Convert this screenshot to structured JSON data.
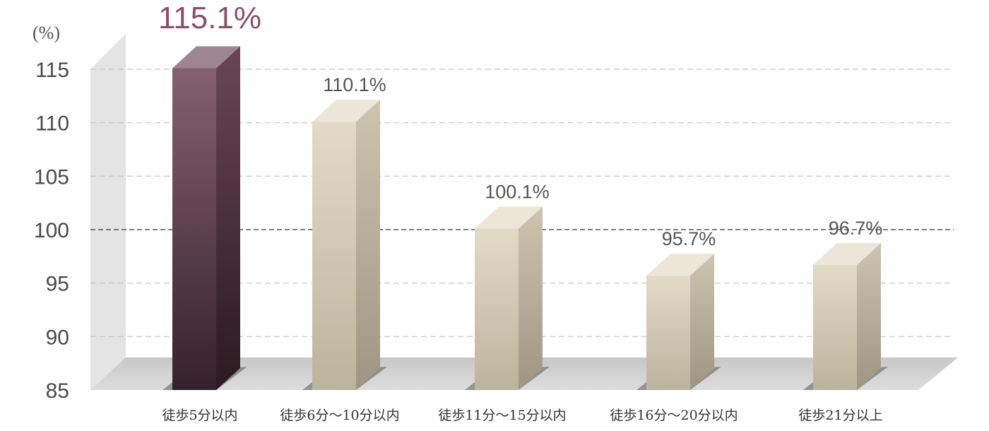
{
  "chart_data": {
    "type": "bar",
    "ylabel": "(%)",
    "ylim": [
      85,
      115
    ],
    "yticks": [
      85,
      90,
      95,
      100,
      105,
      110,
      115
    ],
    "reference_line": 100,
    "grid": true,
    "categories": [
      "徒歩5分以内",
      "徒歩6分〜10分以内",
      "徒歩11分〜15分以内",
      "徒歩16分〜20分以内",
      "徒歩21分以上"
    ],
    "values": [
      115.1,
      110.1,
      100.1,
      95.7,
      96.7
    ],
    "value_labels": [
      "115.1%",
      "110.1%",
      "100.1%",
      "95.7%",
      "96.7%"
    ],
    "highlight_index": 0,
    "colors": {
      "highlight_front_top": "#86606e",
      "highlight_front_bottom": "#34222a",
      "bar_front_top": "#e3dac6",
      "bar_front_bottom": "#bdb39d",
      "floor": "#d2d2d2",
      "back_wall": "#e4e4e4",
      "grid": "#c4c4c4",
      "reference": "#555555"
    }
  }
}
